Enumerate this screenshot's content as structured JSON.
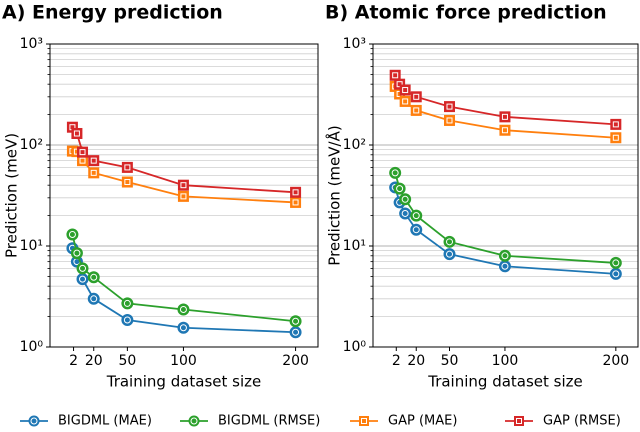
{
  "chart_data": [
    {
      "type": "line",
      "title": "A) Energy prediction",
      "x_label": "Training dataset size",
      "y_label": "Prediction (meV)",
      "log_y": true,
      "grid": true,
      "minor_grid": true,
      "x": [
        1,
        5,
        10,
        20,
        50,
        100,
        200
      ],
      "xlim": [
        -19,
        220
      ],
      "xticks": [
        2,
        20,
        50,
        100,
        200
      ],
      "ylim": [
        1,
        1000
      ],
      "yticks": [
        {
          "value": 1,
          "label": "10⁰"
        },
        {
          "value": 10,
          "label": "10¹"
        },
        {
          "value": 100,
          "label": "10²"
        },
        {
          "value": 1000,
          "label": "10³"
        }
      ],
      "series": [
        {
          "name": "BIGDML (MAE)",
          "color": "#1f77b4",
          "marker": "o",
          "values": [
            9.5,
            7,
            4.7,
            3.0,
            1.85,
            1.55,
            1.4
          ]
        },
        {
          "name": "BIGDML (RMSE)",
          "color": "#2ca02c",
          "marker": "o",
          "values": [
            13,
            8.5,
            6,
            4.9,
            2.7,
            2.35,
            1.8
          ]
        },
        {
          "name": "GAP (MAE)",
          "color": "#ff7f0e",
          "marker": "s",
          "values": [
            87,
            86,
            70,
            53,
            43,
            31,
            27
          ]
        },
        {
          "name": "GAP (RMSE)",
          "color": "#d62728",
          "marker": "s",
          "values": [
            150,
            130,
            85,
            70,
            60,
            40,
            34
          ]
        }
      ]
    },
    {
      "type": "line",
      "title": "B) Atomic force prediction",
      "x_label": "Training dataset size",
      "y_label": "Prediction (meV/Å)",
      "log_y": true,
      "grid": true,
      "minor_grid": true,
      "x": [
        1,
        5,
        10,
        20,
        50,
        100,
        200
      ],
      "xlim": [
        -19,
        220
      ],
      "xticks": [
        2,
        20,
        50,
        100,
        200
      ],
      "ylim": [
        1,
        1000
      ],
      "yticks": [
        {
          "value": 1,
          "label": "10⁰"
        },
        {
          "value": 10,
          "label": "10¹"
        },
        {
          "value": 100,
          "label": "10²"
        },
        {
          "value": 1000,
          "label": "10³"
        }
      ],
      "series": [
        {
          "name": "BIGDML (MAE)",
          "color": "#1f77b4",
          "marker": "o",
          "values": [
            38,
            27,
            21,
            14.5,
            8.3,
            6.3,
            5.3
          ]
        },
        {
          "name": "BIGDML (RMSE)",
          "color": "#2ca02c",
          "marker": "o",
          "values": [
            53,
            37,
            29,
            20,
            11,
            8,
            6.8
          ]
        },
        {
          "name": "GAP (MAE)",
          "color": "#ff7f0e",
          "marker": "s",
          "values": [
            380,
            320,
            270,
            220,
            175,
            140,
            118
          ]
        },
        {
          "name": "GAP (RMSE)",
          "color": "#d62728",
          "marker": "s",
          "values": [
            490,
            400,
            350,
            300,
            240,
            190,
            160
          ]
        }
      ]
    }
  ]
}
